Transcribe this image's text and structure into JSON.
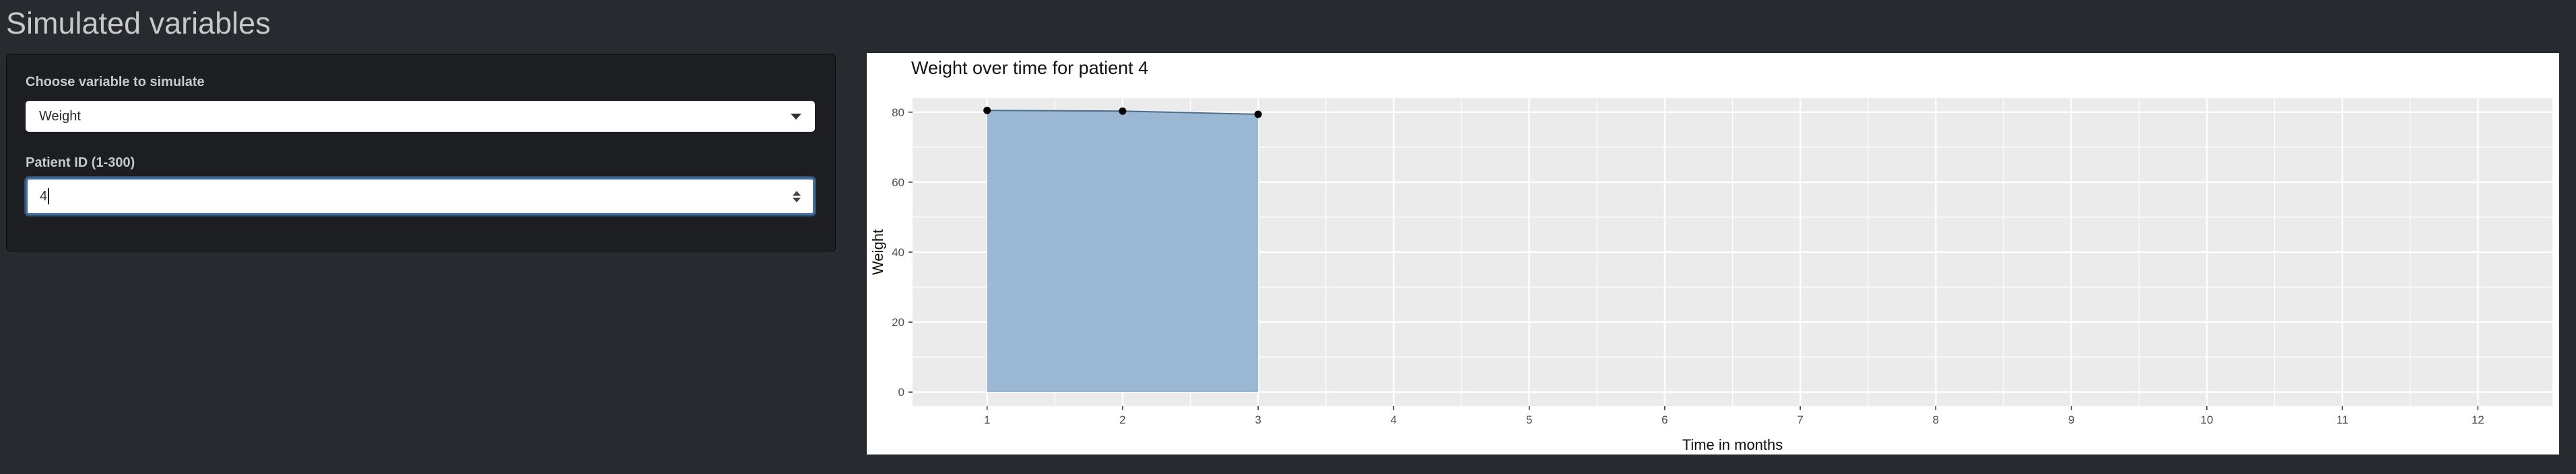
{
  "page": {
    "title": "Simulated variables"
  },
  "sidebar": {
    "variable_label": "Choose variable to simulate",
    "variable_value": "Weight",
    "patient_label": "Patient ID (1-300)",
    "patient_value": "4"
  },
  "chart_data": {
    "type": "area",
    "title": "Weight over time for patient 4",
    "xlabel": "Time in months",
    "ylabel": "Weight",
    "x_ticks": [
      "1",
      "2",
      "3",
      "4",
      "5",
      "6",
      "7",
      "8",
      "9",
      "10",
      "11",
      "12"
    ],
    "y_ticks": [
      "0",
      "20",
      "40",
      "60",
      "80"
    ],
    "xlim": [
      0.45,
      12.55
    ],
    "ylim": [
      -4,
      84
    ],
    "grid": true,
    "series": [
      {
        "x": [
          1,
          2,
          3
        ],
        "y": [
          80.5,
          80.3,
          79.4
        ]
      }
    ],
    "colors": {
      "fill": "#9ab7d3",
      "line": "#4a6e8c",
      "point": "#000000",
      "panel": "#ebebeb",
      "grid": "#ffffff"
    }
  }
}
